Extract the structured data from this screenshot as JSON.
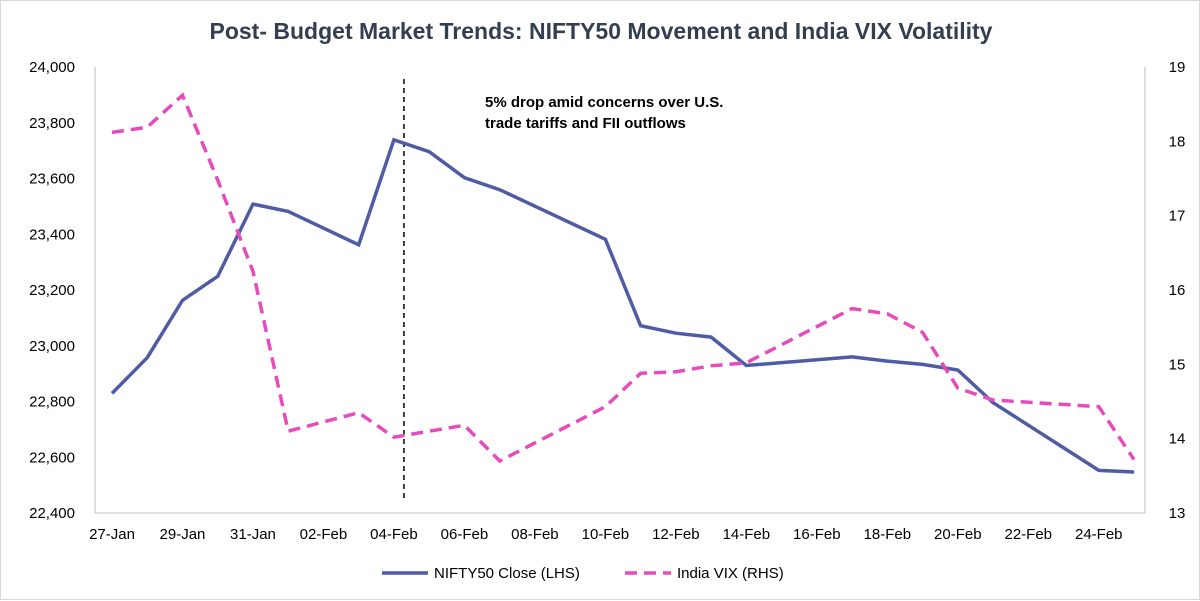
{
  "chart_data": {
    "type": "line",
    "title": "Post- Budget Market Trends: NIFTY50 Movement and India VIX Volatility",
    "x": [
      "27-Jan",
      "28-Jan",
      "29-Jan",
      "30-Jan",
      "31-Jan",
      "01-Feb",
      "03-Feb",
      "04-Feb",
      "05-Feb",
      "06-Feb",
      "07-Feb",
      "10-Feb",
      "11-Feb",
      "12-Feb",
      "13-Feb",
      "14-Feb",
      "17-Feb",
      "18-Feb",
      "19-Feb",
      "20-Feb",
      "21-Feb",
      "24-Feb",
      "25-Feb"
    ],
    "x_tick_labels": [
      "27-Jan",
      "29-Jan",
      "31-Jan",
      "02-Feb",
      "04-Feb",
      "06-Feb",
      "08-Feb",
      "10-Feb",
      "12-Feb",
      "14-Feb",
      "16-Feb",
      "18-Feb",
      "20-Feb",
      "22-Feb",
      "24-Feb"
    ],
    "x_range": [
      "27-Jan",
      "25-Feb"
    ],
    "series": [
      {
        "name": "NIFTY50 Close (LHS)",
        "axis": "left",
        "color": "#4f5ba5",
        "style": "solid",
        "dates": [
          "27-Jan",
          "28-Jan",
          "29-Jan",
          "30-Jan",
          "31-Jan",
          "01-Feb",
          "03-Feb",
          "04-Feb",
          "05-Feb",
          "06-Feb",
          "07-Feb",
          "10-Feb",
          "11-Feb",
          "12-Feb",
          "13-Feb",
          "14-Feb",
          "17-Feb",
          "18-Feb",
          "19-Feb",
          "20-Feb",
          "21-Feb",
          "24-Feb",
          "25-Feb"
        ],
        "values": [
          22829,
          22957,
          23163,
          23249,
          23508,
          23482,
          23362,
          23739,
          23696,
          23603,
          23560,
          23382,
          23072,
          23045,
          23031,
          22929,
          22960,
          22945,
          22933,
          22913,
          22796,
          22553,
          22547
        ]
      },
      {
        "name": "India VIX (RHS)",
        "axis": "right",
        "color": "#e64bbd",
        "style": "dashed",
        "dates": [
          "27-Jan",
          "28-Jan",
          "29-Jan",
          "30-Jan",
          "31-Jan",
          "01-Feb",
          "03-Feb",
          "04-Feb",
          "05-Feb",
          "06-Feb",
          "07-Feb",
          "10-Feb",
          "11-Feb",
          "12-Feb",
          "13-Feb",
          "14-Feb",
          "17-Feb",
          "18-Feb",
          "19-Feb",
          "20-Feb",
          "21-Feb",
          "24-Feb",
          "25-Feb"
        ],
        "values": [
          18.12,
          18.19,
          18.62,
          17.48,
          16.25,
          14.1,
          14.35,
          14.02,
          14.1,
          14.18,
          13.7,
          14.43,
          14.88,
          14.9,
          14.98,
          15.02,
          15.75,
          15.68,
          15.43,
          14.68,
          14.52,
          14.43,
          13.72
        ]
      }
    ],
    "y_left": {
      "min": 22400,
      "max": 24000,
      "step": 200,
      "tick_labels": [
        "22,400",
        "22,600",
        "22,800",
        "23,000",
        "23,200",
        "23,400",
        "23,600",
        "23,800",
        "24,000"
      ]
    },
    "y_right": {
      "min": 13,
      "max": 19,
      "step": 1,
      "tick_labels": [
        "13",
        "14",
        "15",
        "16",
        "17",
        "18",
        "19"
      ]
    },
    "grid": false,
    "legend": {
      "position": "bottom",
      "items": [
        "NIFTY50 Close (LHS)",
        "India VIX (RHS)"
      ]
    },
    "marker_line": {
      "date": "04-Feb",
      "style": "dashed",
      "color": "#000000"
    },
    "annotation": {
      "line1": "5% drop amid concerns over U.S.",
      "line2": "trade tariffs and FII outflows"
    }
  }
}
